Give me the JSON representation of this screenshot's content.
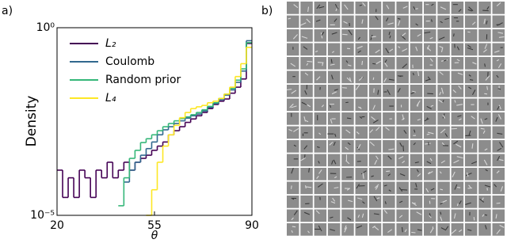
{
  "chart_data": {
    "type": "step",
    "panel_label": "a)",
    "xlabel": "θ",
    "ylabel": "Density",
    "x": [
      20,
      22,
      24,
      26,
      28,
      30,
      32,
      34,
      36,
      38,
      40,
      42,
      44,
      46,
      48,
      50,
      52,
      54,
      56,
      58,
      60,
      62,
      64,
      66,
      68,
      70,
      72,
      74,
      76,
      78,
      80,
      82,
      84,
      86,
      88
    ],
    "bin_width": 2,
    "series": [
      {
        "name": "L₂",
        "color": "#440154",
        "values": [
          0.00016,
          3e-05,
          0.0001,
          3e-05,
          0.00016,
          0.0001,
          3e-05,
          0.00016,
          0.0001,
          0.00026,
          0.0001,
          0.00016,
          0.00026,
          0.00016,
          0.00026,
          0.00033,
          0.0004,
          0.00054,
          0.0007,
          0.0009,
          0.0014,
          0.0018,
          0.0023,
          0.003,
          0.0037,
          0.0045,
          0.0055,
          0.007,
          0.009,
          0.011,
          0.0126,
          0.018,
          0.026,
          0.043,
          0.38
        ]
      },
      {
        "name": "Coulomb",
        "color": "#31688e",
        "values": [
          null,
          null,
          null,
          null,
          null,
          null,
          null,
          null,
          null,
          null,
          null,
          null,
          7.7e-05,
          0.00016,
          0.00026,
          0.0004,
          0.0006,
          0.0009,
          0.0014,
          0.0019,
          0.0023,
          0.0028,
          0.0033,
          0.0039,
          0.0045,
          0.005,
          0.006,
          0.0075,
          0.0095,
          0.012,
          0.016,
          0.022,
          0.035,
          0.07,
          0.45
        ]
      },
      {
        "name": "Random prior",
        "color": "#35b779",
        "values": [
          null,
          null,
          null,
          null,
          null,
          null,
          null,
          null,
          null,
          null,
          null,
          1.8e-05,
          0.0001,
          0.00033,
          0.00054,
          0.00087,
          0.0011,
          0.0014,
          0.0018,
          0.0023,
          0.0028,
          0.0033,
          0.0038,
          0.0042,
          0.0048,
          0.0055,
          0.0065,
          0.008,
          0.01,
          0.013,
          0.017,
          0.024,
          0.04,
          0.08,
          0.4
        ]
      },
      {
        "name": "L₄",
        "color": "#fde725",
        "values": [
          null,
          null,
          null,
          null,
          null,
          null,
          null,
          null,
          null,
          null,
          null,
          null,
          null,
          null,
          null,
          null,
          1e-05,
          4.8e-05,
          0.00026,
          0.0007,
          0.0014,
          0.0025,
          0.004,
          0.0055,
          0.007,
          0.0078,
          0.0085,
          0.01,
          0.011,
          0.013,
          0.017,
          0.026,
          0.05,
          0.11,
          0.3
        ]
      }
    ],
    "xlim": [
      20,
      90
    ],
    "xticks": [
      20,
      55,
      90
    ],
    "ylim": [
      1e-05,
      1
    ],
    "yticks": [
      {
        "value": 1,
        "label": "10⁰"
      },
      {
        "value": 1e-05,
        "label": "10⁻⁵"
      }
    ],
    "log_y": true,
    "legend": "upper left"
  },
  "panel_b": {
    "label": "b)"
  }
}
